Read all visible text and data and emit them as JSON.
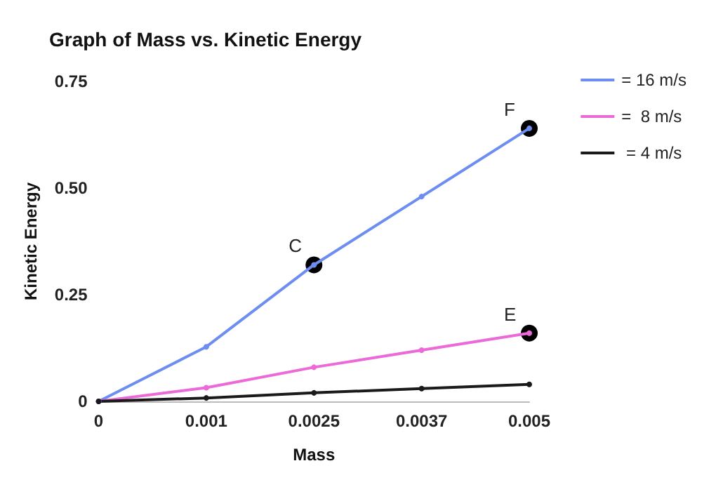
{
  "chart_data": {
    "type": "line",
    "title": "Graph of Mass vs. Kinetic Energy",
    "xlabel": "Mass",
    "ylabel": "Kinetic Energy",
    "categories": [
      "0",
      "0.001",
      "0.0025",
      "0.0037",
      "0.005"
    ],
    "series": [
      {
        "name": "= 16 m/s",
        "color": "#6d8ef0",
        "values": [
          0,
          0.128,
          0.32,
          0.48,
          0.64
        ]
      },
      {
        "name": "=  8 m/s",
        "color": "#ec6ad8",
        "values": [
          0,
          0.032,
          0.08,
          0.12,
          0.16
        ]
      },
      {
        "name": " = 4 m/s",
        "color": "#1a1a1a",
        "values": [
          0,
          0.008,
          0.02,
          0.03,
          0.04
        ]
      }
    ],
    "annotations": [
      {
        "text": "C",
        "x": "0.0025",
        "y": 0.32
      },
      {
        "text": "F",
        "x": "0.005",
        "y": 0.64
      },
      {
        "text": "E",
        "x": "0.005",
        "y": 0.16
      }
    ],
    "ylim": [
      0,
      0.75
    ],
    "yticks": [
      0,
      0.25,
      {
        "value": 0.5,
        "label": "0.50"
      },
      0.75
    ],
    "marker": "circle",
    "grid": false,
    "legend": "right"
  }
}
